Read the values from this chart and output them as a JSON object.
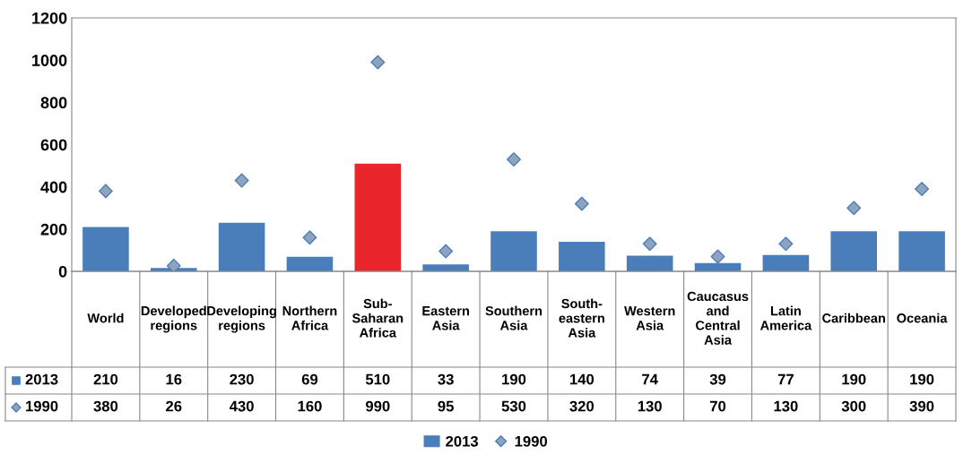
{
  "chart_data": {
    "type": "bar",
    "categories": [
      "World",
      "Developed regions",
      "Developing regions",
      "Northern Africa",
      "Sub-Saharan Africa",
      "Eastern Asia",
      "Southern Asia",
      "South-eastern Asia",
      "Western Asia",
      "Caucasus and Central Asia",
      "Latin America",
      "Caribbean",
      "Oceania"
    ],
    "series": [
      {
        "name": "2013",
        "color": "#4a7ebb",
        "colors": [
          "#4a7ebb",
          "#4a7ebb",
          "#4a7ebb",
          "#4a7ebb",
          "#e8262b",
          "#4a7ebb",
          "#4a7ebb",
          "#4a7ebb",
          "#4a7ebb",
          "#4a7ebb",
          "#4a7ebb",
          "#4a7ebb",
          "#4a7ebb"
        ],
        "values": [
          210,
          16,
          230,
          69,
          510,
          33,
          190,
          140,
          74,
          39,
          77,
          190,
          190
        ]
      },
      {
        "name": "1990",
        "type": "scatter",
        "marker": "diamond",
        "color": "#8fa3bd",
        "values": [
          380,
          26,
          430,
          160,
          990,
          95,
          530,
          320,
          130,
          70,
          130,
          300,
          390
        ]
      }
    ],
    "ylim": [
      0,
      1200
    ],
    "yticks": [
      0,
      200,
      400,
      600,
      800,
      1000,
      1200
    ],
    "grid": false,
    "legend": "bottom",
    "data_labels": true
  }
}
